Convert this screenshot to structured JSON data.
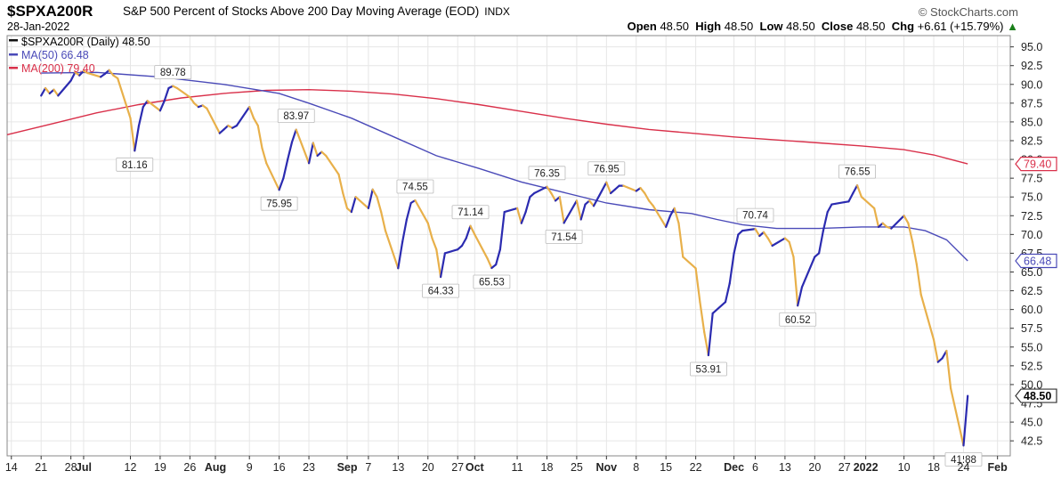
{
  "header": {
    "symbol": "$SPXA200R",
    "description": "S&P 500 Percent of Stocks Above 200 Day Moving Average (EOD)",
    "exchange": "INDX",
    "date": "28-Jan-2022",
    "brand": "© StockCharts.com",
    "open_label": "Open",
    "open": "48.50",
    "high_label": "High",
    "high": "48.50",
    "low_label": "Low",
    "low": "48.50",
    "close_label": "Close",
    "close": "48.50",
    "chg_label": "Chg",
    "chg": "+6.61 (+15.79%)",
    "chg_arrow": "▲"
  },
  "legend": {
    "main": "$SPXA200R (Daily) 48.50",
    "ma50": "MA(50) 66.48",
    "ma200": "MA(200) 79.40"
  },
  "colors": {
    "up": "#2b2bb0",
    "down": "#e8b04a",
    "ma50": "#4a4ab8",
    "ma200": "#d9304a",
    "grid": "#e6e6e6",
    "axis": "#333333"
  },
  "chart_data": {
    "type": "line",
    "y_ticks": [
      42.5,
      45.0,
      47.5,
      50.0,
      52.5,
      55.0,
      57.5,
      60.0,
      62.5,
      65.0,
      67.5,
      70.0,
      72.5,
      75.0,
      77.5,
      80.0,
      82.5,
      85.0,
      87.5,
      90.0,
      92.5,
      95.0
    ],
    "ylim": [
      40.5,
      96.5
    ],
    "x_ticks": [
      {
        "d": 0,
        "label": "14"
      },
      {
        "d": 7,
        "label": "21"
      },
      {
        "d": 14,
        "label": "28"
      },
      {
        "d": 17,
        "label": "Jul"
      },
      {
        "d": 28,
        "label": "12"
      },
      {
        "d": 35,
        "label": "19"
      },
      {
        "d": 42,
        "label": "26"
      },
      {
        "d": 48,
        "label": "Aug"
      },
      {
        "d": 56,
        "label": "9"
      },
      {
        "d": 63,
        "label": "16"
      },
      {
        "d": 70,
        "label": "23"
      },
      {
        "d": 79,
        "label": "Sep"
      },
      {
        "d": 84,
        "label": "7"
      },
      {
        "d": 91,
        "label": "13"
      },
      {
        "d": 98,
        "label": "20"
      },
      {
        "d": 105,
        "label": "27"
      },
      {
        "d": 109,
        "label": "Oct"
      },
      {
        "d": 119,
        "label": "11"
      },
      {
        "d": 126,
        "label": "18"
      },
      {
        "d": 133,
        "label": "25"
      },
      {
        "d": 140,
        "label": "Nov"
      },
      {
        "d": 147,
        "label": "8"
      },
      {
        "d": 154,
        "label": "15"
      },
      {
        "d": 161,
        "label": "22"
      },
      {
        "d": 170,
        "label": "Dec"
      },
      {
        "d": 175,
        "label": "6"
      },
      {
        "d": 182,
        "label": "13"
      },
      {
        "d": 189,
        "label": "20"
      },
      {
        "d": 196,
        "label": "27"
      },
      {
        "d": 201,
        "label": "2022"
      },
      {
        "d": 210,
        "label": "10"
      },
      {
        "d": 217,
        "label": "18"
      },
      {
        "d": 224,
        "label": "24"
      },
      {
        "d": 232,
        "label": "Feb"
      }
    ],
    "bold_x_labels": [
      "Jul",
      "Aug",
      "Sep",
      "Oct",
      "Nov",
      "Dec",
      "2022",
      "Feb"
    ],
    "xlim": [
      -1,
      235
    ],
    "series": [
      {
        "name": "$SPXA200R (Daily) 48.50",
        "points": [
          [
            7,
            88.5
          ],
          [
            8,
            89.5
          ],
          [
            9,
            88.8
          ],
          [
            10,
            89.3
          ],
          [
            11,
            88.5
          ],
          [
            14,
            90.5
          ],
          [
            15,
            91.6
          ],
          [
            16,
            91.2
          ],
          [
            17,
            91.8
          ],
          [
            18,
            91.5
          ],
          [
            21,
            91.0
          ],
          [
            22,
            91.4
          ],
          [
            23,
            91.9
          ],
          [
            24,
            91.2
          ],
          [
            25,
            90.8
          ],
          [
            28,
            85.5
          ],
          [
            29,
            81.16
          ],
          [
            30,
            84.5
          ],
          [
            31,
            87.0
          ],
          [
            32,
            87.8
          ],
          [
            35,
            86.5
          ],
          [
            36,
            87.8
          ],
          [
            37,
            89.5
          ],
          [
            38,
            89.78
          ],
          [
            39,
            89.5
          ],
          [
            42,
            88.3
          ],
          [
            43,
            87.5
          ],
          [
            44,
            87.0
          ],
          [
            45,
            87.2
          ],
          [
            46,
            86.8
          ],
          [
            49,
            83.5
          ],
          [
            50,
            84.0
          ],
          [
            51,
            84.5
          ],
          [
            52,
            84.2
          ],
          [
            53,
            84.5
          ],
          [
            56,
            87.0
          ],
          [
            57,
            85.5
          ],
          [
            58,
            84.5
          ],
          [
            59,
            81.5
          ],
          [
            60,
            79.5
          ],
          [
            63,
            75.95
          ],
          [
            64,
            77.5
          ],
          [
            65,
            80.0
          ],
          [
            66,
            82.3
          ],
          [
            67,
            83.97
          ],
          [
            70,
            79.5
          ],
          [
            71,
            82.2
          ],
          [
            72,
            80.5
          ],
          [
            73,
            81.0
          ],
          [
            74,
            80.5
          ],
          [
            77,
            78.0
          ],
          [
            78,
            75.5
          ],
          [
            79,
            73.5
          ],
          [
            80,
            73.0
          ],
          [
            81,
            75.0
          ],
          [
            84,
            73.5
          ],
          [
            85,
            76.0
          ],
          [
            86,
            75.0
          ],
          [
            87,
            73.0
          ],
          [
            88,
            70.5
          ],
          [
            91,
            65.5
          ],
          [
            92,
            69.0
          ],
          [
            93,
            72.0
          ],
          [
            94,
            74.2
          ],
          [
            95,
            74.55
          ],
          [
            98,
            71.5
          ],
          [
            99,
            69.5
          ],
          [
            100,
            68.0
          ],
          [
            101,
            64.33
          ],
          [
            102,
            67.5
          ],
          [
            105,
            68.0
          ],
          [
            106,
            68.5
          ],
          [
            107,
            69.5
          ],
          [
            108,
            71.14
          ],
          [
            109,
            70.0
          ],
          [
            112,
            66.8
          ],
          [
            113,
            65.53
          ],
          [
            114,
            66.0
          ],
          [
            115,
            68.0
          ],
          [
            116,
            73.0
          ],
          [
            119,
            73.5
          ],
          [
            120,
            71.5
          ],
          [
            121,
            73.0
          ],
          [
            122,
            75.0
          ],
          [
            123,
            75.5
          ],
          [
            126,
            76.35
          ],
          [
            127,
            75.5
          ],
          [
            128,
            74.5
          ],
          [
            129,
            75.0
          ],
          [
            130,
            71.54
          ],
          [
            133,
            74.5
          ],
          [
            134,
            72.0
          ],
          [
            135,
            74.0
          ],
          [
            136,
            74.5
          ],
          [
            137,
            73.8
          ],
          [
            140,
            76.95
          ],
          [
            141,
            75.5
          ],
          [
            142,
            76.0
          ],
          [
            143,
            76.5
          ],
          [
            144,
            76.5
          ],
          [
            147,
            75.8
          ],
          [
            148,
            76.2
          ],
          [
            149,
            75.5
          ],
          [
            150,
            74.5
          ],
          [
            151,
            73.8
          ],
          [
            154,
            71.0
          ],
          [
            155,
            72.5
          ],
          [
            156,
            73.5
          ],
          [
            157,
            71.5
          ],
          [
            158,
            67.0
          ],
          [
            161,
            65.5
          ],
          [
            162,
            61.0
          ],
          [
            163,
            57.0
          ],
          [
            164,
            53.91
          ],
          [
            165,
            59.5
          ],
          [
            168,
            61.0
          ],
          [
            169,
            63.5
          ],
          [
            170,
            67.5
          ],
          [
            171,
            70.0
          ],
          [
            172,
            70.5
          ],
          [
            175,
            70.74
          ],
          [
            176,
            69.8
          ],
          [
            177,
            70.3
          ],
          [
            178,
            69.5
          ],
          [
            179,
            68.5
          ],
          [
            182,
            69.5
          ],
          [
            183,
            69.0
          ],
          [
            184,
            67.0
          ],
          [
            185,
            60.52
          ],
          [
            186,
            63.0
          ],
          [
            189,
            67.0
          ],
          [
            190,
            67.5
          ],
          [
            191,
            70.5
          ],
          [
            192,
            73.0
          ],
          [
            193,
            74.0
          ],
          [
            196,
            74.3
          ],
          [
            197,
            74.4
          ],
          [
            198,
            75.5
          ],
          [
            199,
            76.55
          ],
          [
            200,
            75.0
          ],
          [
            203,
            73.5
          ],
          [
            204,
            71.0
          ],
          [
            205,
            71.5
          ],
          [
            206,
            71.0
          ],
          [
            207,
            70.8
          ],
          [
            210,
            72.5
          ],
          [
            211,
            71.5
          ],
          [
            212,
            69.0
          ],
          [
            213,
            66.0
          ],
          [
            214,
            62.0
          ],
          [
            217,
            56.0
          ],
          [
            218,
            53.0
          ],
          [
            219,
            53.5
          ],
          [
            220,
            54.5
          ],
          [
            221,
            49.5
          ],
          [
            224,
            41.88
          ],
          [
            225,
            48.5
          ]
        ]
      },
      {
        "name": "MA(50) 66.48",
        "points": [
          [
            7,
            91.5
          ],
          [
            20,
            91.6
          ],
          [
            35,
            91.0
          ],
          [
            50,
            90.0
          ],
          [
            63,
            88.8
          ],
          [
            70,
            87.5
          ],
          [
            80,
            85.5
          ],
          [
            90,
            83.0
          ],
          [
            100,
            80.5
          ],
          [
            110,
            78.8
          ],
          [
            120,
            77.0
          ],
          [
            130,
            75.6
          ],
          [
            140,
            74.2
          ],
          [
            150,
            73.3
          ],
          [
            160,
            72.8
          ],
          [
            166,
            72.0
          ],
          [
            172,
            71.3
          ],
          [
            180,
            70.8
          ],
          [
            190,
            70.8
          ],
          [
            200,
            71.0
          ],
          [
            210,
            71.0
          ],
          [
            215,
            70.5
          ],
          [
            220,
            69.3
          ],
          [
            225,
            66.48
          ]
        ]
      },
      {
        "name": "MA(200) 79.40",
        "points": [
          [
            -1,
            83.3
          ],
          [
            10,
            84.8
          ],
          [
            20,
            86.2
          ],
          [
            30,
            87.3
          ],
          [
            40,
            88.2
          ],
          [
            50,
            88.8
          ],
          [
            60,
            89.2
          ],
          [
            70,
            89.3
          ],
          [
            80,
            89.1
          ],
          [
            90,
            88.7
          ],
          [
            100,
            88.1
          ],
          [
            110,
            87.3
          ],
          [
            120,
            86.4
          ],
          [
            130,
            85.5
          ],
          [
            140,
            84.7
          ],
          [
            150,
            84.0
          ],
          [
            160,
            83.5
          ],
          [
            170,
            83.0
          ],
          [
            180,
            82.6
          ],
          [
            190,
            82.2
          ],
          [
            200,
            81.8
          ],
          [
            210,
            81.3
          ],
          [
            217,
            80.6
          ],
          [
            221,
            80.0
          ],
          [
            225,
            79.4
          ]
        ]
      }
    ],
    "annotations": [
      {
        "x": 29,
        "y": 81.16,
        "label": "81.16",
        "pos": "below"
      },
      {
        "x": 38,
        "y": 89.78,
        "label": "89.78",
        "pos": "above"
      },
      {
        "x": 63,
        "y": 75.95,
        "label": "75.95",
        "pos": "below"
      },
      {
        "x": 67,
        "y": 83.97,
        "label": "83.97",
        "pos": "above"
      },
      {
        "x": 95,
        "y": 74.55,
        "label": "74.55",
        "pos": "above"
      },
      {
        "x": 101,
        "y": 64.33,
        "label": "64.33",
        "pos": "below"
      },
      {
        "x": 108,
        "y": 71.14,
        "label": "71.14",
        "pos": "above"
      },
      {
        "x": 113,
        "y": 65.53,
        "label": "65.53",
        "pos": "below"
      },
      {
        "x": 126,
        "y": 76.35,
        "label": "76.35",
        "pos": "above"
      },
      {
        "x": 130,
        "y": 71.54,
        "label": "71.54",
        "pos": "below"
      },
      {
        "x": 140,
        "y": 76.95,
        "label": "76.95",
        "pos": "above"
      },
      {
        "x": 164,
        "y": 53.91,
        "label": "53.91",
        "pos": "below"
      },
      {
        "x": 175,
        "y": 70.74,
        "label": "70.74",
        "pos": "above"
      },
      {
        "x": 185,
        "y": 60.52,
        "label": "60.52",
        "pos": "below"
      },
      {
        "x": 199,
        "y": 76.55,
        "label": "76.55",
        "pos": "above"
      },
      {
        "x": 224,
        "y": 41.88,
        "label": "41.88",
        "pos": "below"
      }
    ],
    "right_tags": [
      {
        "y": 79.4,
        "label": "79.40",
        "color": "ma200"
      },
      {
        "y": 66.48,
        "label": "66.48",
        "color": "ma50"
      },
      {
        "y": 48.5,
        "label": "48.50",
        "color": "axis"
      }
    ]
  }
}
